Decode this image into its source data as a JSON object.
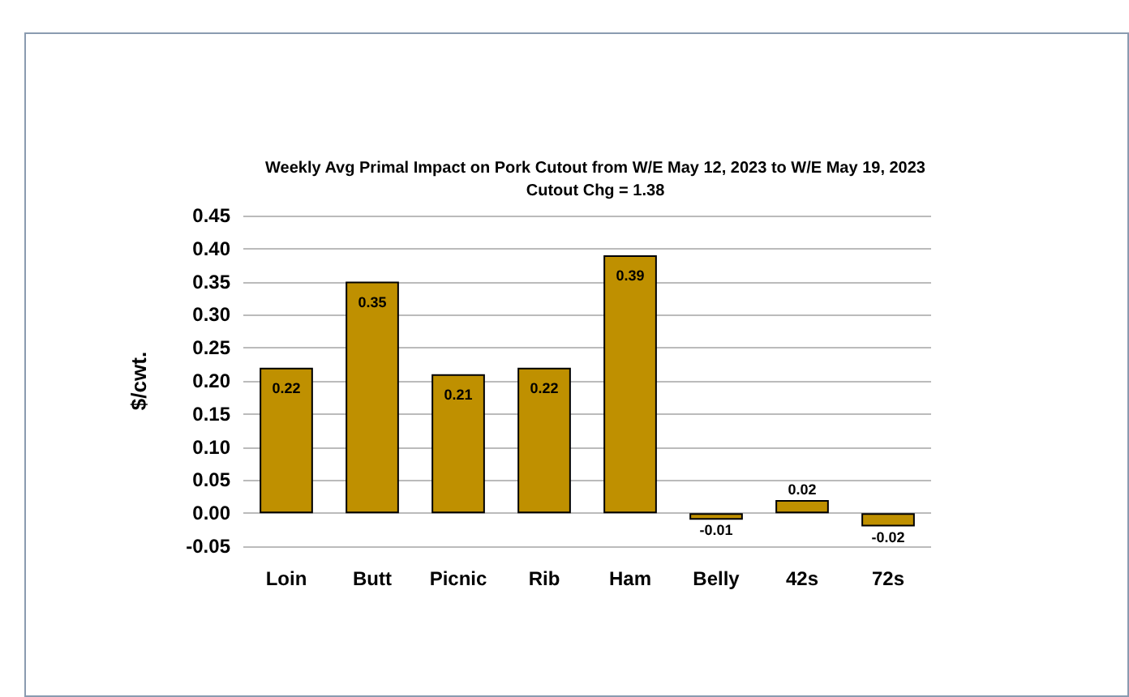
{
  "chart_data": {
    "type": "bar",
    "title": "Weekly Avg Primal Impact on Pork Cutout from W/E May 12, 2023 to W/E May 19, 2023",
    "subtitle": "Cutout Chg = 1.38",
    "ylabel": "$/cwt.",
    "categories": [
      "Loin",
      "Butt",
      "Picnic",
      "Rib",
      "Ham",
      "Belly",
      "42s",
      "72s"
    ],
    "values": [
      0.22,
      0.35,
      0.21,
      0.22,
      0.39,
      -0.01,
      0.02,
      -0.02
    ],
    "color": "#bf9000",
    "data_labels": true,
    "grid": "y",
    "ylim": [
      -0.05,
      0.45
    ],
    "yticks": [
      {
        "value": -0.05,
        "label": "-0.05"
      },
      {
        "value": 0,
        "label": "0.00"
      },
      {
        "value": 0.05,
        "label": "0.05"
      },
      {
        "value": 0.1,
        "label": "0.10"
      },
      {
        "value": 0.15,
        "label": "0.15"
      },
      {
        "value": 0.2,
        "label": "0.20"
      },
      {
        "value": 0.25,
        "label": "0.25"
      },
      {
        "value": 0.3,
        "label": "0.30"
      },
      {
        "value": 0.35,
        "label": "0.35"
      },
      {
        "value": 0.4,
        "label": "0.40"
      },
      {
        "value": 0.45,
        "label": "0.45"
      }
    ]
  }
}
